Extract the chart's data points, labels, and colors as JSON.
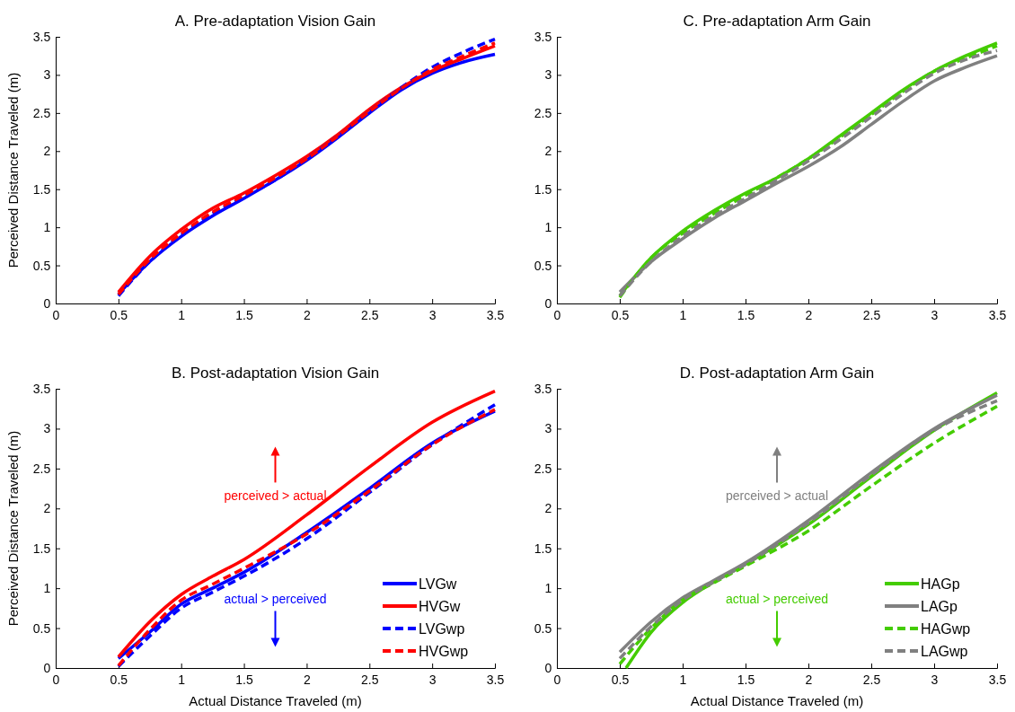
{
  "chart_data": [
    {
      "type": "line",
      "title": "A. Pre-adaptation Vision Gain",
      "ylabel": "Perceived Distance Traveled (m)",
      "xlim": [
        0,
        3.5
      ],
      "xticks": [
        0,
        0.5,
        1,
        1.5,
        2,
        2.5,
        3,
        3.5
      ],
      "ylim": [
        0,
        3.5
      ],
      "yticks": [
        0,
        0.5,
        1,
        1.5,
        2,
        2.5,
        3,
        3.5
      ],
      "legend": false,
      "x": [
        0.5,
        0.75,
        1,
        1.25,
        1.5,
        1.75,
        2,
        2.25,
        2.5,
        2.75,
        3,
        3.25,
        3.5
      ],
      "series": [
        {
          "color": "#0000ff",
          "line_style": "solid",
          "values": [
            0.12,
            0.55,
            0.88,
            1.15,
            1.38,
            1.62,
            1.88,
            2.18,
            2.5,
            2.8,
            3.02,
            3.17,
            3.27
          ]
        },
        {
          "color": "#ff0000",
          "line_style": "solid",
          "values": [
            0.15,
            0.62,
            0.97,
            1.25,
            1.45,
            1.68,
            1.93,
            2.22,
            2.55,
            2.83,
            3.05,
            3.22,
            3.38
          ]
        },
        {
          "color": "#0000ff",
          "line_style": "dashed",
          "values": [
            0.1,
            0.55,
            0.9,
            1.18,
            1.4,
            1.62,
            1.9,
            2.2,
            2.52,
            2.83,
            3.1,
            3.3,
            3.47
          ]
        },
        {
          "color": "#ff0000",
          "line_style": "dashed",
          "values": [
            0.12,
            0.58,
            0.92,
            1.2,
            1.42,
            1.65,
            1.9,
            2.2,
            2.52,
            2.82,
            3.07,
            3.25,
            3.42
          ]
        }
      ]
    },
    {
      "type": "line",
      "title": "C. Pre-adaptation Arm Gain",
      "xlim": [
        0,
        3.5
      ],
      "xticks": [
        0,
        0.5,
        1,
        1.5,
        2,
        2.5,
        3,
        3.5
      ],
      "ylim": [
        0,
        3.5
      ],
      "yticks": [
        0,
        0.5,
        1,
        1.5,
        2,
        2.5,
        3,
        3.5
      ],
      "legend": false,
      "x": [
        0.5,
        0.75,
        1,
        1.25,
        1.5,
        1.75,
        2,
        2.25,
        2.5,
        2.75,
        3,
        3.25,
        3.5
      ],
      "series": [
        {
          "color": "#44cc00",
          "line_style": "solid",
          "values": [
            0.1,
            0.6,
            0.95,
            1.22,
            1.45,
            1.65,
            1.9,
            2.2,
            2.5,
            2.8,
            3.05,
            3.25,
            3.42
          ]
        },
        {
          "color": "#808080",
          "line_style": "solid",
          "values": [
            0.15,
            0.55,
            0.85,
            1.12,
            1.35,
            1.58,
            1.8,
            2.05,
            2.35,
            2.65,
            2.92,
            3.1,
            3.25
          ]
        },
        {
          "color": "#44cc00",
          "line_style": "dashed",
          "values": [
            0.08,
            0.6,
            0.92,
            1.18,
            1.42,
            1.65,
            1.9,
            2.18,
            2.48,
            2.78,
            3.05,
            3.22,
            3.38
          ]
        },
        {
          "color": "#808080",
          "line_style": "dashed",
          "values": [
            0.1,
            0.55,
            0.88,
            1.15,
            1.38,
            1.62,
            1.87,
            2.15,
            2.45,
            2.75,
            3.02,
            3.2,
            3.32
          ]
        }
      ]
    },
    {
      "type": "line",
      "title": "B. Post-adaptation Vision Gain",
      "xlabel": "Actual Distance Traveled (m)",
      "ylabel": "Perceived Distance Traveled (m)",
      "xlim": [
        0,
        3.5
      ],
      "xticks": [
        0,
        0.5,
        1,
        1.5,
        2,
        2.5,
        3,
        3.5
      ],
      "ylim": [
        0,
        3.5
      ],
      "yticks": [
        0,
        0.5,
        1,
        1.5,
        2,
        2.5,
        3,
        3.5
      ],
      "legend": "bottom right",
      "annotations": [
        "perceived > actual",
        "actual > perceived"
      ],
      "x": [
        0.5,
        0.75,
        1,
        1.25,
        1.5,
        2,
        2.5,
        3,
        3.5
      ],
      "series": [
        {
          "name": "LVGw",
          "color": "#0000ff",
          "line_style": "solid",
          "values": [
            0.12,
            0.45,
            0.8,
            1.0,
            1.2,
            1.7,
            2.25,
            2.82,
            3.22
          ]
        },
        {
          "name": "HVGw",
          "color": "#ff0000",
          "line_style": "solid",
          "values": [
            0.14,
            0.58,
            0.92,
            1.15,
            1.36,
            1.92,
            2.52,
            3.08,
            3.47
          ]
        },
        {
          "name": "LVGwp",
          "color": "#0000ff",
          "line_style": "dashed",
          "values": [
            0.02,
            0.4,
            0.75,
            0.95,
            1.15,
            1.62,
            2.2,
            2.8,
            3.3
          ]
        },
        {
          "name": "HVGwp",
          "color": "#ff0000",
          "line_style": "dashed",
          "values": [
            0.03,
            0.48,
            0.85,
            1.05,
            1.25,
            1.68,
            2.22,
            2.8,
            3.24
          ]
        }
      ]
    },
    {
      "type": "line",
      "title": "D. Post-adaptation Arm Gain",
      "xlabel": "Actual Distance Traveled (m)",
      "xlim": [
        0,
        3.5
      ],
      "xticks": [
        0,
        0.5,
        1,
        1.5,
        2,
        2.5,
        3,
        3.5
      ],
      "ylim": [
        0,
        3.5
      ],
      "yticks": [
        0,
        0.5,
        1,
        1.5,
        2,
        2.5,
        3,
        3.5
      ],
      "legend": "bottom right",
      "annotations": [
        "perceived > actual",
        "actual > perceived"
      ],
      "series": [
        {
          "name": "HAGp",
          "color": "#44cc00",
          "line_style": "solid",
          "x": [
            0.55,
            0.75,
            1,
            1.25,
            1.5,
            2,
            2.5,
            3,
            3.5
          ],
          "values": [
            0,
            0.45,
            0.82,
            1.08,
            1.3,
            1.8,
            2.4,
            2.98,
            3.45
          ]
        },
        {
          "name": "LAGp",
          "color": "#808080",
          "line_style": "solid",
          "x": [
            0.5,
            0.75,
            1,
            1.25,
            1.5,
            2,
            2.5,
            3,
            3.5
          ],
          "values": [
            0.2,
            0.58,
            0.88,
            1.1,
            1.32,
            1.85,
            2.45,
            3.0,
            3.42
          ]
        },
        {
          "name": "HAGwp",
          "color": "#44cc00",
          "line_style": "dashed",
          "x": [
            0.5,
            0.75,
            1,
            1.25,
            1.5,
            2,
            2.5,
            3,
            3.5
          ],
          "values": [
            0.05,
            0.5,
            0.85,
            1.07,
            1.28,
            1.72,
            2.28,
            2.82,
            3.28
          ]
        },
        {
          "name": "LAGwp",
          "color": "#808080",
          "line_style": "dashed",
          "x": [
            0.5,
            0.75,
            1,
            1.25,
            1.5,
            2,
            2.5,
            3,
            3.5
          ],
          "values": [
            0.12,
            0.52,
            0.85,
            1.08,
            1.3,
            1.82,
            2.42,
            2.98,
            3.35
          ]
        }
      ]
    }
  ]
}
